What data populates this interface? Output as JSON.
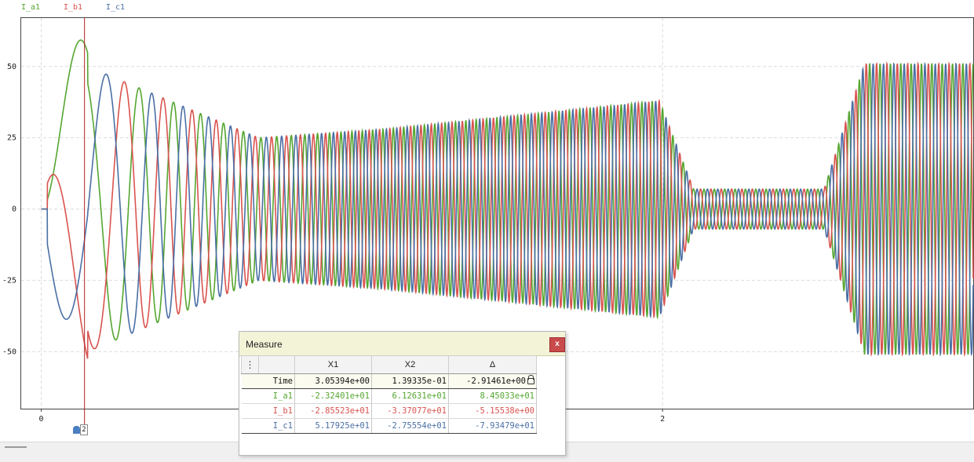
{
  "legend": [
    {
      "label": "I_a1",
      "color": "#55a630"
    },
    {
      "label": "I_b1",
      "color": "#d9534f"
    },
    {
      "label": "I_c1",
      "color": "#4a6fa5"
    }
  ],
  "chart_data": {
    "type": "line",
    "xlabel": "",
    "ylabel": "",
    "x_ticks": [
      "0",
      "2"
    ],
    "y_ticks": [
      "50",
      "25",
      "0",
      "-25",
      "-50"
    ],
    "ylim": [
      -70,
      67
    ],
    "xlim": [
      -0.0645,
      3.0
    ],
    "grid": true,
    "cursor_x": 0.1393,
    "series": [
      {
        "name": "I_a1",
        "color": "#55a630",
        "phase": 0
      },
      {
        "name": "I_b1",
        "color": "#d9534f",
        "phase": 2.094
      },
      {
        "name": "I_c1",
        "color": "#4a6fa5",
        "phase": 4.189
      }
    ]
  },
  "cursor_marker": {
    "label": "2"
  },
  "measure": {
    "title": "Measure",
    "close_label": "x",
    "headers": [
      "",
      "",
      "X1",
      "X2",
      "Δ"
    ],
    "rows": [
      {
        "name": "Time",
        "x1": "3.05394e+00",
        "x2": "1.39335e-01",
        "delta": "-2.91461e+00",
        "color": "#111111"
      },
      {
        "name": "I_a1",
        "x1": "-2.32401e+01",
        "x2": "6.12631e+01",
        "delta": "8.45033e+01",
        "color": "#55a630"
      },
      {
        "name": "I_b1",
        "x1": "-2.85523e+01",
        "x2": "-3.37077e+01",
        "delta": "-5.15538e+00",
        "color": "#d9534f"
      },
      {
        "name": "I_c1",
        "x1": "5.17925e+01",
        "x2": "-2.75554e+01",
        "delta": "-7.93479e+01",
        "color": "#4a6fa5"
      }
    ]
  }
}
